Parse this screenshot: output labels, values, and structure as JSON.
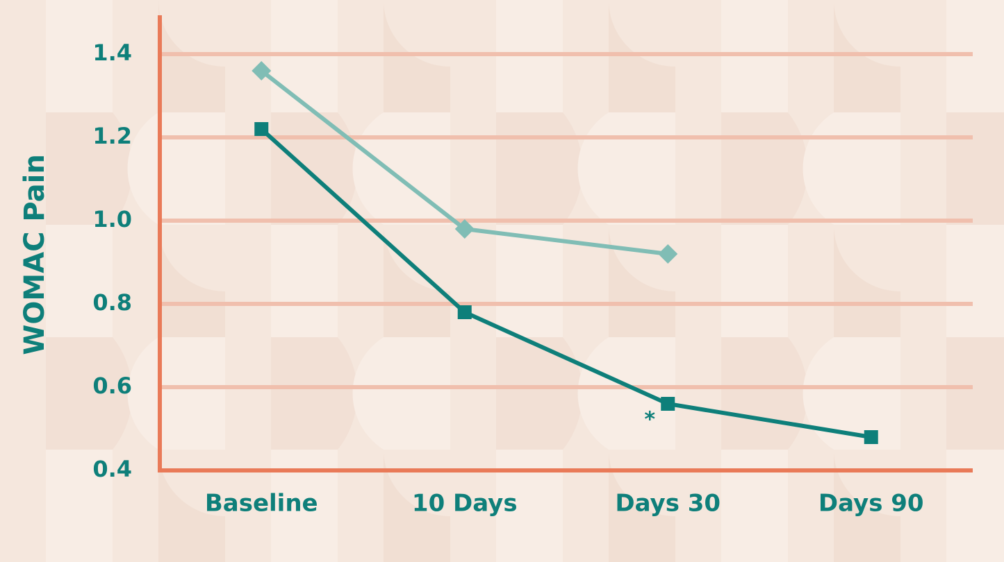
{
  "chart_data": {
    "type": "line",
    "y_label": "WOMAC Pain",
    "categories": [
      "Baseline",
      "10 Days",
      "Days 30",
      "Days 90"
    ],
    "series": [
      {
        "color": "#0e7f7a",
        "marker": "square",
        "values": [
          1.22,
          0.78,
          0.56,
          0.48
        ]
      },
      {
        "color": "#80bdb5",
        "marker": "diamond",
        "values": [
          1.36,
          0.98,
          0.92,
          null
        ]
      }
    ],
    "ylim": [
      0.4,
      1.5
    ],
    "yticks": [
      0.4,
      0.6,
      0.8,
      {
        "value": 1.0,
        "label": "1.0"
      },
      1.2,
      1.4
    ],
    "grid": true,
    "annotations": [
      {
        "text": "*"
      }
    ]
  }
}
